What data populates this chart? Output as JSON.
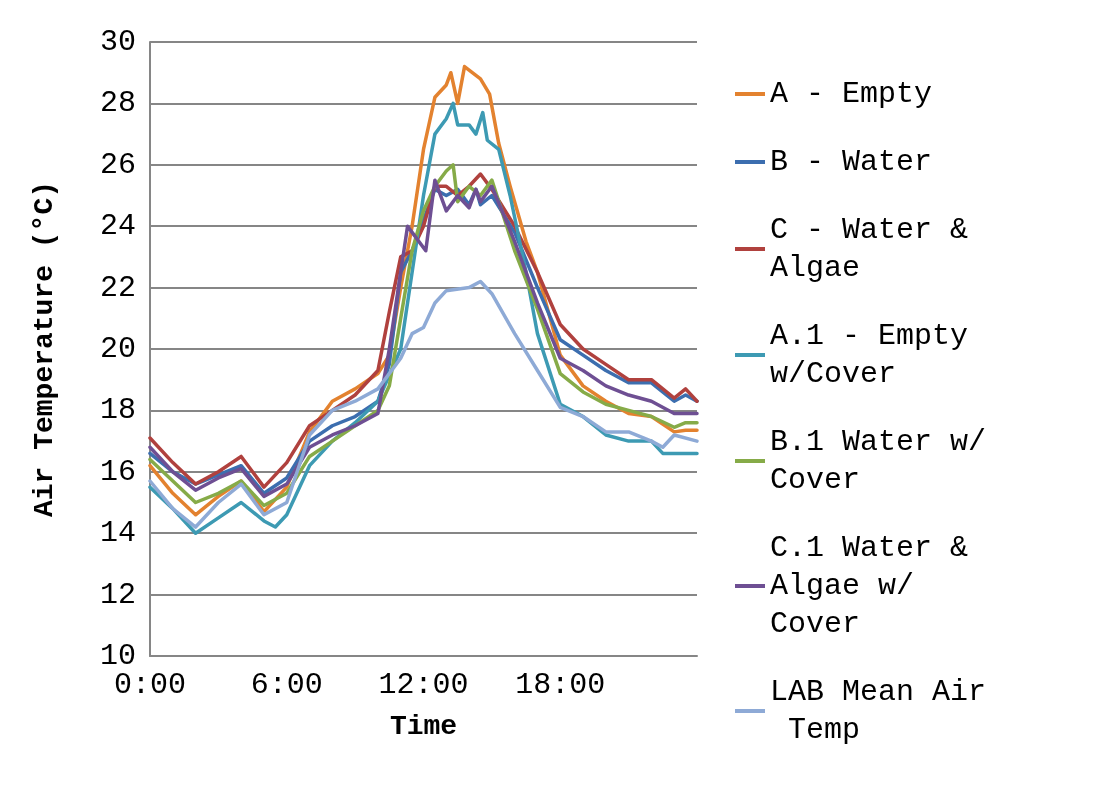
{
  "chart_data": {
    "type": "line",
    "xlabel": "Time",
    "ylabel": "Air Temperature (°C)",
    "xlim": [
      0,
      24
    ],
    "xticks": [
      {
        "value": 0,
        "label": "0:00"
      },
      {
        "value": 6,
        "label": "6:00"
      },
      {
        "value": 12,
        "label": "12:00"
      },
      {
        "value": 18,
        "label": "18:00"
      }
    ],
    "ylim": [
      10,
      30
    ],
    "yticks": [
      10,
      12,
      14,
      16,
      18,
      20,
      22,
      24,
      26,
      28,
      30
    ],
    "grid": "y",
    "legend": "right",
    "marker": "none",
    "line_style": "solid",
    "series": [
      {
        "name": "A - Empty",
        "color": "#e3822f",
        "x": [
          0,
          1,
          2,
          3,
          4,
          5,
          6,
          7,
          8,
          9,
          10,
          10.5,
          11,
          11.5,
          12,
          12.5,
          13,
          13.2,
          13.5,
          13.8,
          14.5,
          14.9,
          15.3,
          15.8,
          16.5,
          17,
          18,
          19,
          20,
          21,
          22,
          23,
          23.5,
          24
        ],
        "values": [
          16.2,
          15.3,
          14.6,
          15.2,
          15.7,
          14.7,
          15.5,
          17.3,
          18.3,
          18.7,
          19.2,
          19.8,
          22,
          24,
          26.5,
          28.2,
          28.6,
          29.0,
          28.0,
          29.2,
          28.8,
          28.3,
          26.7,
          25.3,
          23.5,
          22.5,
          19.8,
          18.8,
          18.3,
          17.9,
          17.8,
          17.3,
          17.35,
          17.35
        ]
      },
      {
        "name": "B - Water",
        "color": "#3c6eaf",
        "x": [
          0,
          1,
          2,
          3,
          4,
          5,
          6,
          7,
          8,
          9,
          10,
          10.5,
          11,
          11.5,
          12,
          12.5,
          13,
          13.5,
          14,
          14.3,
          14.5,
          15,
          16,
          17,
          18,
          19,
          20,
          21,
          22,
          23,
          23.5,
          24
        ],
        "values": [
          16.6,
          16.0,
          15.6,
          15.9,
          16.2,
          15.3,
          15.8,
          17.0,
          17.5,
          17.8,
          18.3,
          19.5,
          22.5,
          23.2,
          24.2,
          25.2,
          25.0,
          25.2,
          24.7,
          25.2,
          24.7,
          25.0,
          23.8,
          22.0,
          20.3,
          19.8,
          19.3,
          18.9,
          18.9,
          18.3,
          18.5,
          18.3
        ]
      },
      {
        "name": "C - Water & Algae",
        "color": "#b0413e",
        "x": [
          0,
          1,
          2,
          3,
          4,
          5,
          6,
          7,
          8,
          9,
          10,
          10.5,
          11,
          11.5,
          12,
          12.5,
          13,
          13.5,
          14,
          14.5,
          15,
          16,
          17,
          18,
          19,
          20,
          21,
          22,
          23,
          23.5,
          24
        ],
        "values": [
          17.1,
          16.3,
          15.6,
          16.0,
          16.5,
          15.5,
          16.3,
          17.5,
          18.0,
          18.5,
          19.3,
          21.2,
          23.0,
          23.2,
          24.0,
          25.3,
          25.3,
          25.0,
          25.3,
          25.7,
          25.2,
          24.0,
          22.5,
          20.8,
          20.0,
          19.5,
          19.0,
          19.0,
          18.4,
          18.7,
          18.3
        ]
      },
      {
        "name": "A.1 - Empty w/Cover",
        "color": "#3d9ab3",
        "x": [
          0,
          1,
          2,
          3,
          4,
          5,
          5.5,
          6,
          7,
          8,
          9,
          10,
          11,
          11.5,
          12,
          12.5,
          13,
          13.3,
          13.5,
          14,
          14.3,
          14.6,
          14.8,
          15.3,
          15.8,
          16.5,
          17,
          18,
          19,
          20,
          21,
          22,
          22.5,
          23,
          24
        ],
        "values": [
          15.5,
          14.8,
          14.0,
          14.5,
          15.0,
          14.4,
          14.2,
          14.6,
          16.2,
          17.0,
          17.6,
          18.3,
          20.0,
          22.5,
          25.0,
          27.0,
          27.5,
          28.0,
          27.3,
          27.3,
          27.0,
          27.7,
          26.8,
          26.5,
          25.0,
          22.5,
          20.5,
          18.2,
          17.8,
          17.2,
          17.0,
          17.0,
          16.6,
          16.6,
          16.6
        ]
      },
      {
        "name": "B.1 Water w/Cover",
        "color": "#86ab48",
        "x": [
          0,
          1,
          2,
          3,
          4,
          5,
          6,
          7,
          8,
          9,
          10,
          10.5,
          11,
          11.5,
          12,
          12.5,
          13,
          13.3,
          13.5,
          14,
          14.5,
          15,
          16,
          17,
          18,
          19,
          20,
          21,
          22,
          23,
          23.5,
          24
        ],
        "values": [
          16.4,
          15.7,
          15.0,
          15.3,
          15.7,
          14.9,
          15.3,
          16.5,
          17.0,
          17.5,
          18.0,
          18.8,
          21.0,
          23.2,
          24.5,
          25.3,
          25.8,
          26.0,
          24.8,
          25.3,
          25.0,
          25.5,
          23.2,
          21.3,
          19.2,
          18.6,
          18.2,
          18.0,
          17.8,
          17.45,
          17.6,
          17.6
        ]
      },
      {
        "name": "C.1 Water & Algae w/Cover",
        "color": "#6e4f93",
        "x": [
          0,
          1,
          2,
          3,
          4,
          5,
          6,
          7,
          8,
          9,
          10,
          10.5,
          11,
          11.3,
          11.5,
          12.1,
          12.5,
          13,
          13.5,
          14,
          14.3,
          14.5,
          15,
          16,
          17,
          18,
          19,
          20,
          21,
          22,
          23,
          24
        ],
        "values": [
          16.8,
          16.0,
          15.4,
          15.8,
          16.1,
          15.2,
          15.6,
          16.8,
          17.2,
          17.5,
          17.9,
          20.0,
          22.5,
          24.0,
          23.8,
          23.2,
          25.5,
          24.5,
          25.0,
          24.6,
          25.2,
          24.8,
          25.3,
          23.5,
          21.5,
          19.7,
          19.3,
          18.8,
          18.5,
          18.3,
          17.9,
          17.9
        ]
      },
      {
        "name": "LAB Mean Air Temp",
        "color": "#8eaad6",
        "x": [
          0,
          1,
          2,
          3,
          4,
          5,
          6,
          7,
          8,
          9,
          10,
          11,
          11.5,
          12,
          12.5,
          13,
          14,
          14.5,
          15,
          16,
          17,
          18,
          19,
          20,
          21,
          22,
          22.5,
          23,
          24
        ],
        "values": [
          15.7,
          14.8,
          14.2,
          15.0,
          15.6,
          14.6,
          15.0,
          17.2,
          18.0,
          18.3,
          18.7,
          19.7,
          20.5,
          20.7,
          21.5,
          21.9,
          22.0,
          22.2,
          21.8,
          20.5,
          19.3,
          18.1,
          17.8,
          17.3,
          17.3,
          17.0,
          16.8,
          17.2,
          17.0
        ]
      }
    ]
  }
}
